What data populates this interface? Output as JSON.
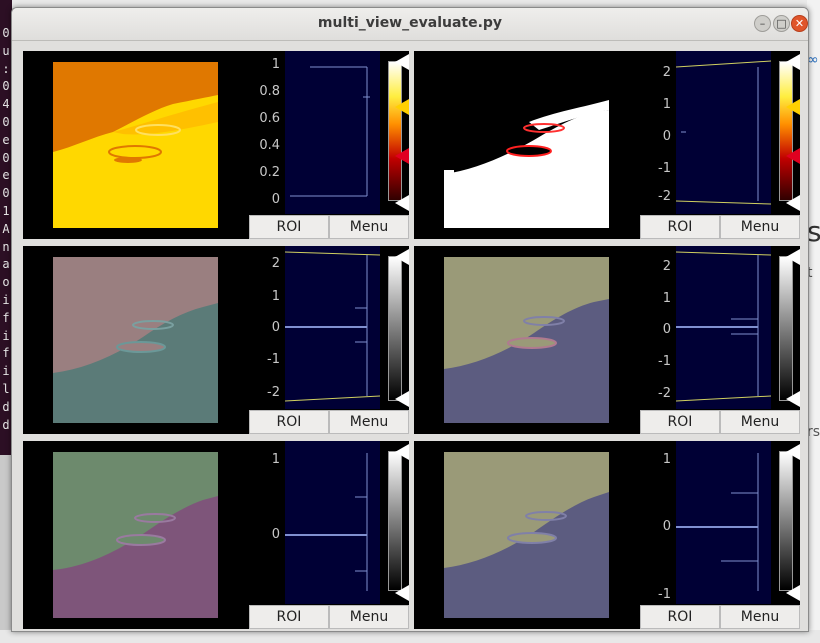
{
  "window": {
    "title": "multi_view_evaluate.py"
  },
  "terminal_chars": [
    "0",
    "u",
    ":",
    "0",
    "4",
    "0",
    "e",
    "0",
    "e",
    "0",
    "1",
    "A",
    "n",
    "a",
    "o",
    "i",
    "f",
    "i",
    "f",
    "i",
    "l",
    "d",
    "d"
  ],
  "background_text": {
    "right_bits": [
      "∞",
      "si",
      "t",
      "rs"
    ]
  },
  "panels": [
    {
      "id": "hot-1",
      "ticks": [
        "1",
        "0.8",
        "0.6",
        "0.4",
        "0.2",
        "0"
      ],
      "roi_label": "ROI",
      "menu_label": "Menu",
      "colormap": "hot"
    },
    {
      "id": "hot-2",
      "ticks": [
        "2",
        "1",
        "0",
        "-1",
        "-2"
      ],
      "roi_label": "ROI",
      "menu_label": "Menu",
      "colormap": "hot"
    },
    {
      "id": "gray-1",
      "ticks": [
        "2",
        "1",
        "0",
        "-1",
        "-2"
      ],
      "roi_label": "ROI",
      "menu_label": "Menu",
      "colormap": "gray"
    },
    {
      "id": "gray-2",
      "ticks": [
        "2",
        "1",
        "0",
        "-1",
        "-2"
      ],
      "roi_label": "ROI",
      "menu_label": "Menu",
      "colormap": "gray"
    },
    {
      "id": "gray-3",
      "ticks": [
        "1",
        "0"
      ],
      "roi_label": "ROI",
      "menu_label": "Menu",
      "colormap": "gray"
    },
    {
      "id": "gray-4",
      "ticks": [
        "1",
        "0",
        "-1"
      ],
      "roi_label": "ROI",
      "menu_label": "Menu",
      "colormap": "gray"
    }
  ],
  "colors": {
    "orange": "#e07800",
    "yellow": "#ffd800",
    "pink_gray": "#9a7f80",
    "teal_gray": "#5b7b78",
    "olive": "#9a9a78",
    "slate": "#5c5c80",
    "green": "#6d8a6d",
    "purple": "#7e557a",
    "hist_bg": "#000035",
    "histline": "#8090d0"
  }
}
